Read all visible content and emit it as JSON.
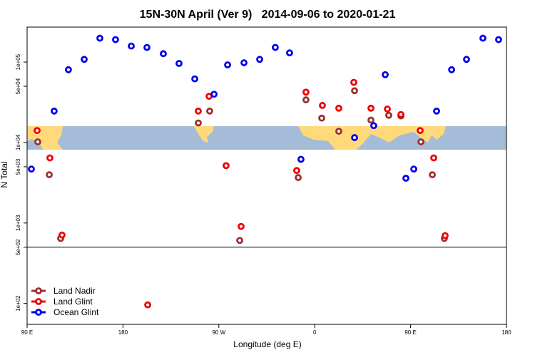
{
  "chart_data": {
    "type": "scatter",
    "title": "15N-30N April (Ver 9)   2014-09-06 to 2020-01-21",
    "xlabel": "Longitude (deg E)",
    "ylabel": "N Total",
    "xlim": [
      90,
      540
    ],
    "xticks": [
      {
        "value": 90,
        "label": "90 E"
      },
      180,
      {
        "value": 270,
        "label": "90 W"
      },
      {
        "value": 360,
        "label": "0"
      },
      {
        "value": 450,
        "label": "90 E"
      },
      {
        "value": 540,
        "label": "180"
      }
    ],
    "ylim": [
      55,
      272000
    ],
    "log_y": true,
    "yticks": [
      {
        "value": 100,
        "label": "1e+02"
      },
      {
        "value": 500,
        "label": "5e+02"
      },
      {
        "value": 1000,
        "label": "1e+03"
      },
      {
        "value": 5000,
        "label": "5e+03"
      },
      {
        "value": 10000,
        "label": "1e+04"
      },
      {
        "value": 50000,
        "label": "5e+04"
      },
      {
        "value": 100000,
        "label": "1e+05"
      }
    ],
    "reference_line": 500,
    "legend": "bottom-left",
    "series": [
      {
        "name": "Land Nadir",
        "color": "#9b2f2f",
        "x": [
          100,
          110.8,
          121.5,
          250.7,
          261.4,
          289.6,
          344.5,
          351.8,
          366.6,
          382.6,
          397.4,
          412.8,
          429.5,
          440.9,
          459.7,
          470.4,
          481.7
        ],
        "values": [
          10200,
          3980,
          644,
          17500,
          24600,
          607,
          3670,
          33900,
          20100,
          13800,
          44000,
          19000,
          21800,
          21400,
          10200,
          3980,
          644
        ]
      },
      {
        "name": "Land Glint",
        "color": "#ee0000",
        "x": [
          99.4,
          111.4,
          122.8,
          203.2,
          250.7,
          260.8,
          276.8,
          290.9,
          343.1,
          351.8,
          367.2,
          382.6,
          396.7,
          412.8,
          428.2,
          440.9,
          459,
          471.7,
          482.4
        ],
        "values": [
          14100,
          6440,
          709,
          96,
          24600,
          37500,
          5160,
          906,
          4490,
          42300,
          28900,
          26700,
          56000,
          26700,
          26100,
          22300,
          14100,
          6440,
          697
        ]
      },
      {
        "name": "Ocean Glint",
        "color": "#0000ee",
        "x": [
          94,
          115.4,
          128.8,
          143.6,
          158.3,
          173,
          187.8,
          202.5,
          217.9,
          232.6,
          247.4,
          265.5,
          278.2,
          293.6,
          308.3,
          323,
          336.4,
          347.1,
          397.4,
          415.4,
          426.2,
          445.6,
          453,
          474.4,
          488.5,
          502.5,
          517.9,
          532.6
        ],
        "values": [
          4680,
          24600,
          80300,
          108000,
          198000,
          190000,
          158000,
          152000,
          127000,
          96100,
          61800,
          39800,
          92300,
          98000,
          108000,
          152000,
          130000,
          6180,
          11500,
          16200,
          69700,
          3600,
          4680,
          24600,
          80300,
          108000,
          198000,
          190000
        ]
      }
    ]
  }
}
